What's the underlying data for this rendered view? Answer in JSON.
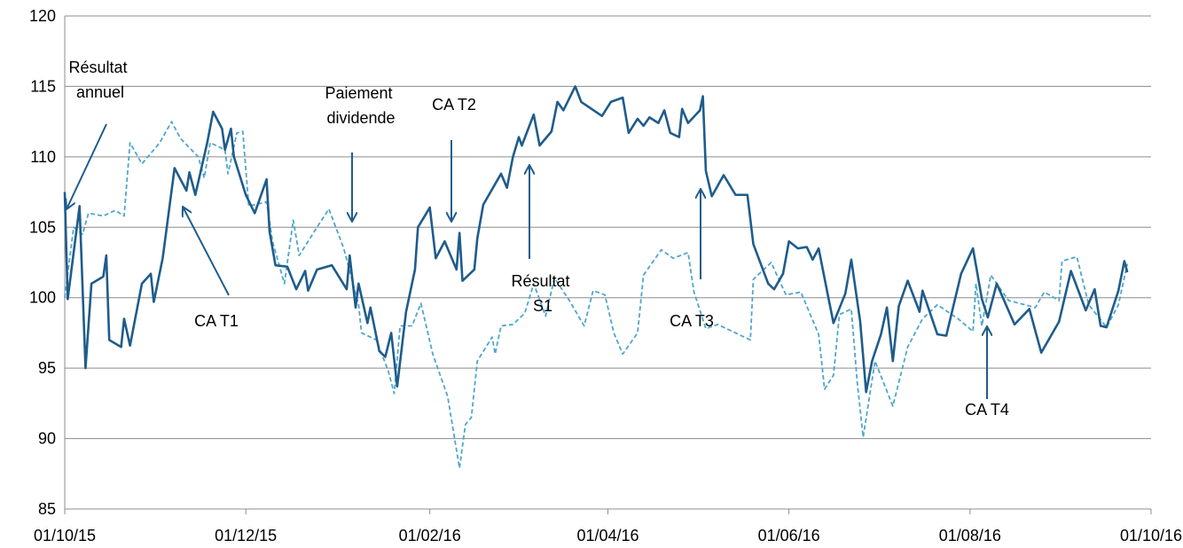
{
  "chart_data": {
    "type": "line",
    "xlim": [
      "2015-10-01",
      "2016-10-01"
    ],
    "xticks": [
      {
        "value": "2015-10-01",
        "label": "01/10/15"
      },
      {
        "value": "2015-12-01",
        "label": "01/12/15"
      },
      {
        "value": "2016-02-01",
        "label": "01/02/16"
      },
      {
        "value": "2016-04-01",
        "label": "01/04/16"
      },
      {
        "value": "2016-06-01",
        "label": "01/06/16"
      },
      {
        "value": "2016-08-01",
        "label": "01/08/16"
      },
      {
        "value": "2016-10-01",
        "label": "01/10/16"
      }
    ],
    "ylim": [
      85,
      120
    ],
    "yticks": [
      85,
      90,
      95,
      100,
      105,
      110,
      115,
      120
    ],
    "grid": true,
    "annotations": [
      {
        "lines": [
          "Résultat",
          "annuel"
        ]
      },
      {
        "lines": [
          "CA T1"
        ]
      },
      {
        "lines": [
          "Paiement",
          "dividende"
        ]
      },
      {
        "lines": [
          "CA T2"
        ]
      },
      {
        "lines": [
          "Résultat",
          "S1"
        ]
      },
      {
        "lines": [
          "CA T3"
        ]
      },
      {
        "lines": [
          "CA T4"
        ]
      }
    ],
    "series": [
      {
        "color": "#1f5c8b",
        "dashed": false,
        "x": [
          "2015-10-01",
          "2015-10-02",
          "2015-10-06",
          "2015-10-08",
          "2015-10-10",
          "2015-10-14",
          "2015-10-15",
          "2015-10-16",
          "2015-10-20",
          "2015-10-21",
          "2015-10-23",
          "2015-10-27",
          "2015-10-30",
          "2015-10-31",
          "2015-11-03",
          "2015-11-07",
          "2015-11-11",
          "2015-11-12",
          "2015-11-14",
          "2015-11-18",
          "2015-11-20",
          "2015-11-23",
          "2015-11-24",
          "2015-11-26",
          "2015-11-27",
          "2015-12-01",
          "2015-12-04",
          "2015-12-08",
          "2015-12-09",
          "2015-12-11",
          "2015-12-15",
          "2015-12-18",
          "2015-12-21",
          "2015-12-22",
          "2015-12-25",
          "2015-12-30",
          "2016-01-04",
          "2016-01-05",
          "2016-01-07",
          "2016-01-08",
          "2016-01-11",
          "2016-01-12",
          "2016-01-15",
          "2016-01-17",
          "2016-01-19",
          "2016-01-21",
          "2016-01-24",
          "2016-01-27",
          "2016-01-28",
          "2016-02-01",
          "2016-02-03",
          "2016-02-06",
          "2016-02-10",
          "2016-02-11",
          "2016-02-12",
          "2016-02-16",
          "2016-02-17",
          "2016-02-19",
          "2016-02-25",
          "2016-02-27",
          "2016-02-29",
          "2016-03-02",
          "2016-03-03",
          "2016-03-07",
          "2016-03-09",
          "2016-03-13",
          "2016-03-15",
          "2016-03-17",
          "2016-03-21",
          "2016-03-23",
          "2016-03-30",
          "2016-04-02",
          "2016-04-06",
          "2016-04-08",
          "2016-04-11",
          "2016-04-13",
          "2016-04-15",
          "2016-04-18",
          "2016-04-20",
          "2016-04-22",
          "2016-04-25",
          "2016-04-26",
          "2016-04-28",
          "2016-05-02",
          "2016-05-03",
          "2016-05-04",
          "2016-05-06",
          "2016-05-10",
          "2016-05-14",
          "2016-05-18",
          "2016-05-20",
          "2016-05-25",
          "2016-05-27",
          "2016-05-30",
          "2016-06-01",
          "2016-06-04",
          "2016-06-07",
          "2016-06-09",
          "2016-06-11",
          "2016-06-14",
          "2016-06-16",
          "2016-06-20",
          "2016-06-22",
          "2016-06-25",
          "2016-06-27",
          "2016-06-29",
          "2016-07-02",
          "2016-07-04",
          "2016-07-06",
          "2016-07-08",
          "2016-07-11",
          "2016-07-15",
          "2016-07-16",
          "2016-07-21",
          "2016-07-24",
          "2016-07-29",
          "2016-08-02",
          "2016-08-05",
          "2016-08-07",
          "2016-08-10",
          "2016-08-16",
          "2016-08-21",
          "2016-08-25",
          "2016-08-31",
          "2016-09-04",
          "2016-09-09",
          "2016-09-12",
          "2016-09-14",
          "2016-09-16",
          "2016-09-20",
          "2016-09-22",
          "2016-09-23"
        ],
        "values": [
          107.5,
          99.9,
          106.5,
          95,
          101,
          101.5,
          103,
          97,
          96.5,
          98.5,
          96.6,
          101,
          101.7,
          99.7,
          102.8,
          109.2,
          107.6,
          108.9,
          107.3,
          111,
          113.2,
          112,
          110.5,
          112,
          110,
          107.3,
          106,
          108.4,
          104.7,
          102.3,
          102.2,
          100.6,
          101.9,
          100.5,
          102,
          102.3,
          100.6,
          103,
          99.3,
          101,
          98.2,
          99.3,
          96.2,
          95.8,
          97.5,
          93.7,
          99,
          102,
          105,
          106.4,
          102.8,
          104,
          102,
          104.6,
          101.2,
          102,
          104.2,
          106.6,
          108.8,
          107.8,
          110,
          111.4,
          110.8,
          113,
          110.8,
          111.8,
          113.9,
          113.3,
          115,
          113.9,
          112.9,
          113.9,
          114.2,
          111.7,
          112.7,
          112.2,
          112.8,
          112.4,
          113.3,
          111.7,
          111.4,
          113.4,
          112.4,
          113.3,
          114.3,
          109,
          107.2,
          108.7,
          107.3,
          107.3,
          103.8,
          101,
          100.6,
          101.7,
          104,
          103.5,
          103.6,
          102.7,
          103.5,
          100.3,
          98.2,
          100.3,
          102.7,
          98.3,
          93.3,
          95.5,
          97.4,
          99.3,
          95.5,
          99.4,
          101.2,
          99,
          100.5,
          97.4,
          97.3,
          101.7,
          103.5,
          99.9,
          98.6,
          101,
          98.1,
          99.2,
          96.1,
          98.3,
          101.9,
          99.1,
          100.6,
          98,
          97.9,
          100.5,
          102.6,
          101.8
        ]
      },
      {
        "color": "#4fa6cc",
        "dashed": true,
        "x": [
          "2015-10-01",
          "2015-10-04",
          "2015-10-07",
          "2015-10-09",
          "2015-10-14",
          "2015-10-18",
          "2015-10-21",
          "2015-10-23",
          "2015-10-27",
          "2015-11-02",
          "2015-11-06",
          "2015-11-09",
          "2015-11-15",
          "2015-11-17",
          "2015-11-19",
          "2015-11-24",
          "2015-11-25",
          "2015-11-28",
          "2015-11-30",
          "2015-12-02",
          "2015-12-08",
          "2015-12-10",
          "2015-12-14",
          "2015-12-17",
          "2015-12-19",
          "2015-12-25",
          "2015-12-29",
          "2016-01-03",
          "2016-01-08",
          "2016-01-09",
          "2016-01-14",
          "2016-01-18",
          "2016-01-20",
          "2016-01-22",
          "2016-01-26",
          "2016-01-29",
          "2016-02-02",
          "2016-02-07",
          "2016-02-11",
          "2016-02-13",
          "2016-02-15",
          "2016-02-17",
          "2016-02-22",
          "2016-02-23",
          "2016-02-25",
          "2016-02-29",
          "2016-03-04",
          "2016-03-07",
          "2016-03-11",
          "2016-03-14",
          "2016-03-19",
          "2016-03-24",
          "2016-03-27",
          "2016-03-31",
          "2016-04-03",
          "2016-04-06",
          "2016-04-11",
          "2016-04-13",
          "2016-04-19",
          "2016-04-23",
          "2016-04-28",
          "2016-04-30",
          "2016-05-04",
          "2016-05-08",
          "2016-05-19",
          "2016-05-20",
          "2016-05-26",
          "2016-05-31",
          "2016-06-05",
          "2016-06-11",
          "2016-06-13",
          "2016-06-16",
          "2016-06-18",
          "2016-06-22",
          "2016-06-24",
          "2016-06-26",
          "2016-06-30",
          "2016-07-06",
          "2016-07-11",
          "2016-07-16",
          "2016-07-21",
          "2016-07-28",
          "2016-08-02",
          "2016-08-03",
          "2016-08-05",
          "2016-08-08",
          "2016-08-14",
          "2016-08-23",
          "2016-08-26",
          "2016-08-31",
          "2016-09-01",
          "2016-09-06",
          "2016-09-10",
          "2016-09-16",
          "2016-09-20",
          "2016-09-23"
        ],
        "values": [
          100,
          105,
          104.5,
          106,
          105.8,
          106.2,
          105.8,
          111,
          109.5,
          111,
          112.5,
          111.3,
          110,
          108.5,
          111,
          110.5,
          108.8,
          111.7,
          111.8,
          106.5,
          106.8,
          104,
          101,
          105.5,
          103,
          105,
          106.3,
          103.5,
          99.5,
          97.5,
          97,
          94.8,
          93.2,
          98,
          98,
          99.6,
          96,
          93,
          87.9,
          91,
          91.5,
          95.5,
          97.2,
          96,
          98,
          98.1,
          98.9,
          101,
          98.7,
          101.4,
          99.8,
          98,
          100.5,
          100.2,
          97.5,
          96,
          97.5,
          101.6,
          103.4,
          102.8,
          103.2,
          100.4,
          97.8,
          98.1,
          97,
          101.3,
          102.5,
          100.2,
          100.4,
          97.4,
          93.5,
          94.5,
          98.8,
          99.2,
          94,
          90.1,
          95.5,
          92.3,
          96.5,
          98.5,
          99.5,
          98.5,
          97.6,
          101,
          98,
          101.6,
          99.8,
          99.3,
          100.4,
          99.8,
          102.6,
          102.9,
          99.5,
          97.9,
          99.5,
          102.4
        ]
      }
    ]
  }
}
